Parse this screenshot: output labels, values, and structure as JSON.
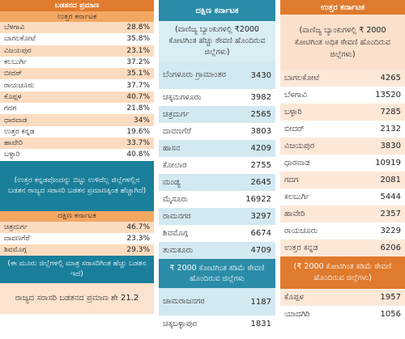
{
  "poverty": {
    "title": "ಬಡತನದ ಪ್ರಮಾಣ",
    "north": {
      "title": "ಉತ್ತರ ಕರ್ನಾಟಕ",
      "rows": [
        [
          "ಬೆಳಗಾವಿ",
          "28.8%"
        ],
        [
          "ಬಾಗಲಕೋಟೆ",
          "35.8%"
        ],
        [
          "ವಿಜಯಪುರ",
          "23.1%"
        ],
        [
          "ಕಲಬುರ್ಗಿ",
          "37.2%"
        ],
        [
          "ಬೀದರ್",
          "35.1%"
        ],
        [
          "ರಾಯಚೂರು",
          "37.7%"
        ],
        [
          "ಕೊಪ್ಪಳ",
          "40.7%"
        ],
        [
          "ಗದಗ",
          "21.8%"
        ],
        [
          "ಧಾರವಾಡ",
          "34%"
        ],
        [
          "ಉತ್ತರ ಕನ್ನಡ",
          "19.6%"
        ],
        [
          "ಹಾವೇರಿ",
          "33.7%"
        ],
        [
          "ಬಳ್ಳಾರಿ",
          "40.8%"
        ]
      ]
    },
    "north_note": "(ಉತ್ತರ ಕನ್ನಡವೊಂದನ್ನು ಬಿಟ್ಟು ಉಳಿದೆಲ್ಲ ಜಿಲ್ಲೆಗಳಲ್ಲಿನ ಬಡತನ ರಾಜ್ಯದ ಸರಾಸರಿ ಬಡತನ ಪ್ರಮಾಣಕ್ಕಿಂತ ಹೆಚ್ಚಾಗಿದೆ)",
    "south": {
      "title": "ದಕ್ಷಿಣ ಕರ್ನಾಟಕ",
      "rows": [
        [
          "ಚಿತ್ರದುರ್ಗ",
          "46.7%"
        ],
        [
          "ದಾವಣಗೆರೆ",
          "23.3%"
        ],
        [
          "ಶಿವಮೊಗ್ಗ",
          "29.3%"
        ]
      ]
    },
    "south_note": "(ಈ ಮೂರು ಜಿಲ್ಲೆಗಳಲ್ಲಿ ಮಾತ್ರ ಸರಾಸರಿಗಿಂತ ಹೆಚ್ಚು ಬಡತನ ಇದೆ)",
    "footer": "ರಾಜ್ಯದ ಸರಾಸರಿ ಬಡತನದ ಪ್ರಮಾಣ ಶೇ 21.2"
  },
  "south_deposits": {
    "title": "ದಕ್ಷಿಣ ಕರ್ನಾಟಕ",
    "above": {
      "title": "(ವಾಣಿಜ್ಯ ಬ್ಯಾಂಕುಗಳಲ್ಲಿ ₹2000 ಕೋಟಿಗಿಂತ ಹೆಚ್ಚು ಠೇವಣಿ ಹೊಂದಿರುವ ಜಿಲ್ಲೆಗಳು)",
      "rows": [
        [
          "ಬೆಂಗಳೂರು ಗ್ರಾಮಾಂತರ",
          "3430"
        ],
        [
          "ಚಿಕ್ಕಮಗಳೂರು",
          "3982"
        ],
        [
          "ಚಿತ್ರದುರ್ಗ",
          "2565"
        ],
        [
          "ದಾವಣಗೆರೆ",
          "3803"
        ],
        [
          "ಹಾಸನ",
          "4209"
        ],
        [
          "ಕೋಲಾರ",
          "2755"
        ],
        [
          "ಮಂಡ್ಯ",
          "2645"
        ],
        [
          "ಮೈಸೂರು",
          "16922"
        ],
        [
          "ರಾಮನಗರ",
          "3297"
        ],
        [
          "ಶಿವಮೊಗ್ಗ",
          "6674"
        ],
        [
          "ತುಮಕೂರು",
          "4709"
        ]
      ]
    },
    "below": {
      "title": "₹ 2000 ಕೋಟಿಗಿಂತ ಕಡಿಮೆ ಠೇವಣಿ ಹೊಂದಿರುವ ಜಿಲ್ಲೆಗಳು",
      "rows": [
        [
          "ಚಾಮರಾಜನಗರ",
          "1187"
        ],
        [
          "ಚಿಕ್ಕಬಳ್ಳಾಪುರ",
          "1831"
        ]
      ]
    }
  },
  "north_deposits": {
    "title": "ಉತ್ತರ ಕರ್ನಾಟಕ",
    "above": {
      "title": "(ವಾಣಿಜ್ಯ ಬ್ಯಾಂಕುಗಳಲ್ಲಿ ₹ 2000 ಕೋಟಿಗಿಂತ ಅಧಿಕ ಠೇವಣಿ ಹೊಂದಿರುವ ಜಿಲ್ಲೆಗಳು)",
      "rows": [
        [
          "ಬಾಗಲಕೋಟೆ",
          "4265"
        ],
        [
          "ಬೆಳಗಾವಿ",
          "13520"
        ],
        [
          "ಬಳ್ಳಾರಿ",
          "7285"
        ],
        [
          "ಬೀದರ್",
          "2132"
        ],
        [
          "ವಿಜಯಪುರ",
          "3830"
        ],
        [
          "ಧಾರವಾಡ",
          "10919"
        ],
        [
          "ಗದಗ",
          "2081"
        ],
        [
          "ಕಲಬುರ್ಗಿ",
          "5444"
        ],
        [
          "ಹಾವೇರಿ",
          "2357"
        ],
        [
          "ರಾಯಚೂರು",
          "3229"
        ],
        [
          "ಉತ್ತರ ಕನ್ನಡ",
          "6206"
        ]
      ]
    },
    "below": {
      "title": "(₹ 2000 ಕೋಟಿಗಿಂತ ಕಡಿಮೆ ಠೇವಣಿ ಹೊಂದಿರುವ ಜಿಲ್ಲೆಗಳು)",
      "rows": [
        [
          "ಕೊಪ್ಪಳ",
          "1957"
        ],
        [
          "ಯಾದಗಿರಿ",
          "1056"
        ]
      ]
    }
  }
}
